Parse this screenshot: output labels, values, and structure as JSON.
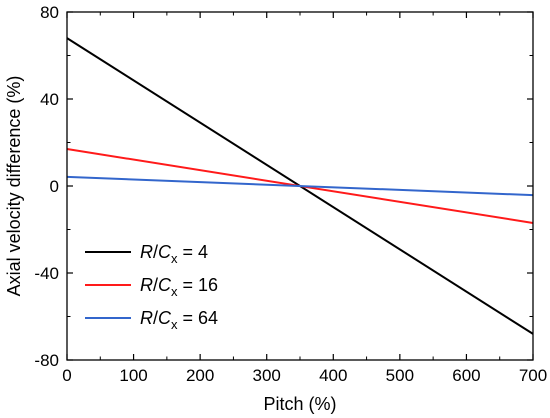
{
  "chart_data": {
    "type": "line",
    "title": "",
    "xlabel": "Pitch (%)",
    "ylabel": "Axial velocity difference (%)",
    "xlim": [
      0,
      700
    ],
    "ylim": [
      -80,
      80
    ],
    "x_ticks": [
      0,
      100,
      200,
      300,
      400,
      500,
      600,
      700
    ],
    "y_ticks": [
      -80,
      -40,
      0,
      40,
      80
    ],
    "grid": false,
    "legend_position": "lower-left",
    "series": [
      {
        "name": "R/Cx = 4",
        "legend": {
          "ratio": "R",
          "sep": "/",
          "base": "C",
          "sub": "x",
          "rest": " = 4"
        },
        "color": "#000000",
        "x": [
          0,
          700
        ],
        "y": [
          68,
          -68
        ]
      },
      {
        "name": "R/Cx = 16",
        "legend": {
          "ratio": "R",
          "sep": "/",
          "base": "C",
          "sub": "x",
          "rest": " = 16"
        },
        "color": "#ff1a1a",
        "x": [
          0,
          700
        ],
        "y": [
          17,
          -17
        ]
      },
      {
        "name": "R/Cx = 64",
        "legend": {
          "ratio": "R",
          "sep": "/",
          "base": "C",
          "sub": "x",
          "rest": " = 64"
        },
        "color": "#3366cc",
        "x": [
          0,
          700
        ],
        "y": [
          4.2,
          -4.2
        ]
      }
    ]
  }
}
